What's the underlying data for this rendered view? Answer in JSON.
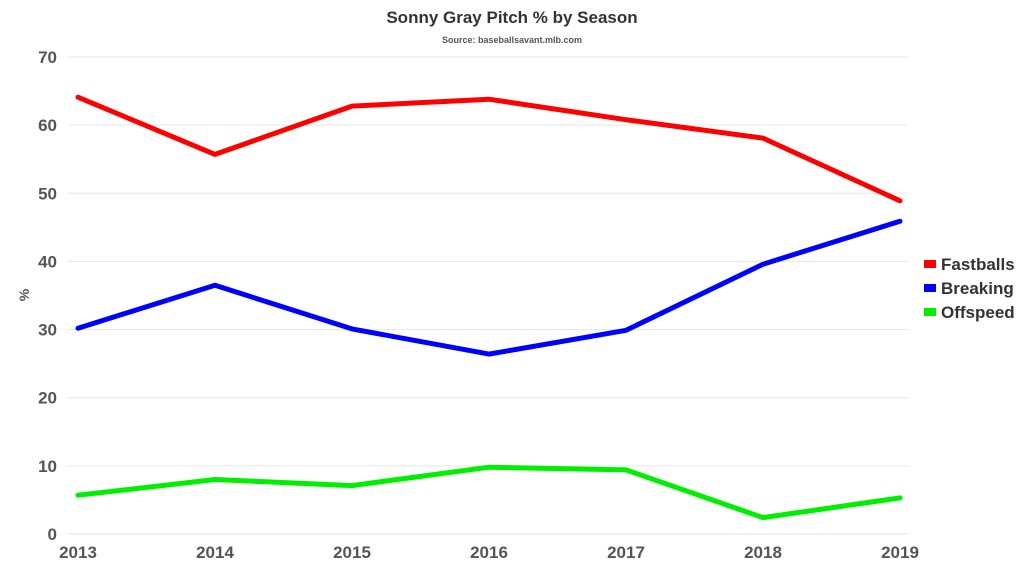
{
  "chart_data": {
    "type": "line",
    "title": "Sonny Gray Pitch % by Season",
    "subtitle": "Source: baseballsavant.mlb.com",
    "xlabel": "",
    "ylabel": "%",
    "x": [
      "2013",
      "2014",
      "2015",
      "2016",
      "2017",
      "2018",
      "2019"
    ],
    "ylim": [
      0,
      70
    ],
    "yticks": [
      0,
      10,
      20,
      30,
      40,
      50,
      60,
      70
    ],
    "grid": true,
    "legend_position": "right",
    "series": [
      {
        "name": "Fastballs",
        "color": "#ff0000",
        "values": [
          64.1,
          55.7,
          62.8,
          63.8,
          60.8,
          58.1,
          48.9
        ]
      },
      {
        "name": "Breaking",
        "color": "#0000ff",
        "values": [
          30.2,
          36.5,
          30.1,
          26.4,
          29.9,
          39.6,
          45.9
        ]
      },
      {
        "name": "Offspeed",
        "color": "#00ee00",
        "values": [
          5.7,
          8.0,
          7.1,
          9.8,
          9.4,
          2.4,
          5.3
        ]
      }
    ]
  }
}
